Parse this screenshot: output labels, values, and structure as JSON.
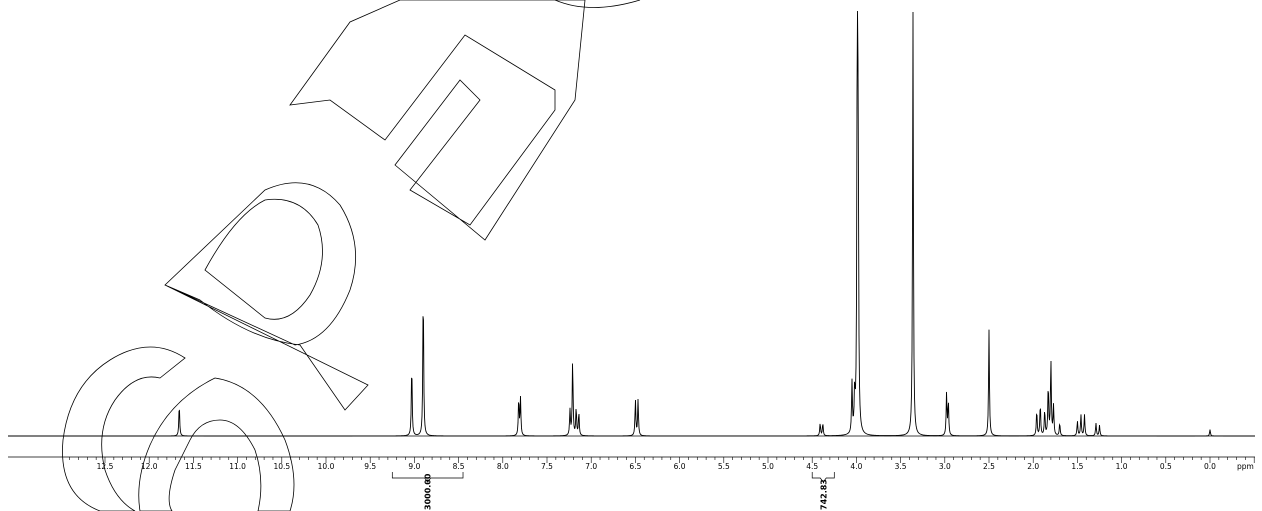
{
  "chart_data": {
    "type": "line",
    "xlabel": "ppm",
    "xlim": [
      12.9,
      -0.5
    ],
    "x_reversed": true,
    "grid": false,
    "ticks": [
      "12.5",
      "12.0",
      "11.5",
      "11.0",
      "10.5",
      "10.0",
      "9.5",
      "9.0",
      "8.5",
      "8.0",
      "7.5",
      "7.0",
      "6.5",
      "6.0",
      "5.5",
      "5.0",
      "4.5",
      "4.0",
      "3.5",
      "3.0",
      "2.5",
      "2.0",
      "1.5",
      "1.0",
      "0.5",
      "0.0"
    ],
    "peaks": [
      {
        "ppm": 11.66,
        "height": 0.075
      },
      {
        "ppm": 9.03,
        "height": 0.17
      },
      {
        "ppm": 8.9,
        "height": 0.35
      },
      {
        "ppm": 7.82,
        "height": 0.088
      },
      {
        "ppm": 7.8,
        "height": 0.088
      },
      {
        "ppm": 7.24,
        "height": 0.06
      },
      {
        "ppm": 7.21,
        "height": 0.18
      },
      {
        "ppm": 7.17,
        "height": 0.065
      },
      {
        "ppm": 7.14,
        "height": 0.055
      },
      {
        "ppm": 6.5,
        "height": 0.085
      },
      {
        "ppm": 6.47,
        "height": 0.085
      },
      {
        "ppm": 4.41,
        "height": 0.03
      },
      {
        "ppm": 4.38,
        "height": 0.03
      },
      {
        "ppm": 4.05,
        "height": 0.12
      },
      {
        "ppm": 4.02,
        "height": 0.09
      },
      {
        "ppm": 3.99,
        "height": 0.95
      },
      {
        "ppm": 3.98,
        "height": 0.65
      },
      {
        "ppm": 3.36,
        "height": 1.0
      },
      {
        "ppm": 2.98,
        "height": 0.1
      },
      {
        "ppm": 2.96,
        "height": 0.08
      },
      {
        "ppm": 2.5,
        "height": 0.25
      },
      {
        "ppm": 1.96,
        "height": 0.06
      },
      {
        "ppm": 1.92,
        "height": 0.075
      },
      {
        "ppm": 1.87,
        "height": 0.06
      },
      {
        "ppm": 1.83,
        "height": 0.12
      },
      {
        "ppm": 1.8,
        "height": 0.18
      },
      {
        "ppm": 1.77,
        "height": 0.07
      },
      {
        "ppm": 1.7,
        "height": 0.03
      },
      {
        "ppm": 1.5,
        "height": 0.035
      },
      {
        "ppm": 1.46,
        "height": 0.05
      },
      {
        "ppm": 1.42,
        "height": 0.05
      },
      {
        "ppm": 1.29,
        "height": 0.03
      },
      {
        "ppm": 1.25,
        "height": 0.025
      },
      {
        "ppm": 0.0,
        "height": 0.015
      }
    ],
    "integrals": [
      {
        "from": 9.25,
        "to": 8.45,
        "label": "3000.00"
      },
      {
        "from": 4.5,
        "to": 4.25,
        "label": "742.83"
      }
    ]
  },
  "watermark": {
    "text": "SPEC"
  }
}
